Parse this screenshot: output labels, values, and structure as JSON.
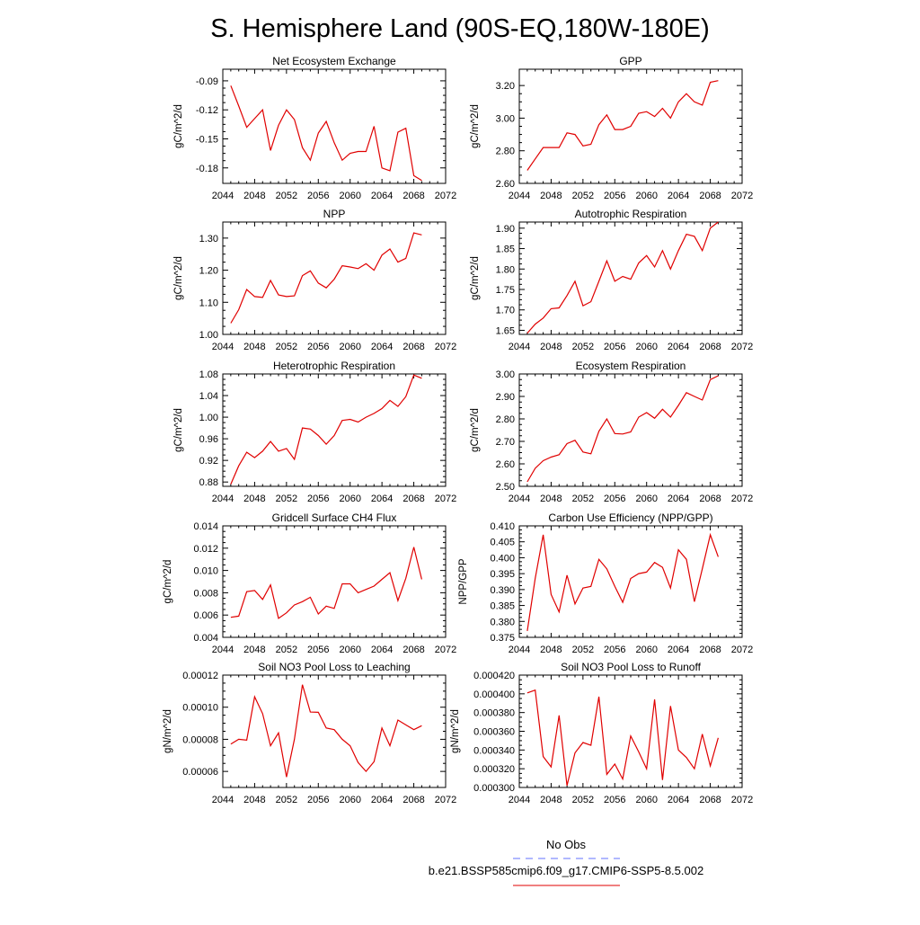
{
  "title": "S. Hemisphere Land (90S-EQ,180W-180E)",
  "legend": {
    "obs_label": "No Obs",
    "obs_color": "#6070ff",
    "model_label": "b.e21.BSSP585cmip6.f09_g17.CMIP6-SSP5-8.5.002",
    "model_color": "#e00000"
  },
  "chart_data": [
    {
      "type": "line",
      "title": "Net Ecosystem Exchange",
      "ylabel": "gC/m^2/d",
      "xlim": [
        2044,
        2072
      ],
      "xticks": [
        2044,
        2048,
        2052,
        2056,
        2060,
        2064,
        2068,
        2072
      ],
      "ylim": [
        -0.196,
        -0.078
      ],
      "yticks": [
        -0.09,
        -0.12,
        -0.15,
        -0.18
      ],
      "ytick_labels": [
        "-0.09",
        "-0.12",
        "-0.15",
        "-0.18"
      ],
      "x": [
        2045,
        2046,
        2047,
        2048,
        2049,
        2050,
        2051,
        2052,
        2053,
        2054,
        2055,
        2056,
        2057,
        2058,
        2059,
        2060,
        2061,
        2062,
        2063,
        2064,
        2065,
        2066,
        2067,
        2068,
        2069
      ],
      "y": [
        -0.095,
        -0.116,
        -0.138,
        -0.129,
        -0.12,
        -0.162,
        -0.136,
        -0.12,
        -0.13,
        -0.159,
        -0.172,
        -0.144,
        -0.132,
        -0.154,
        -0.172,
        -0.165,
        -0.163,
        -0.163,
        -0.137,
        -0.18,
        -0.183,
        -0.143,
        -0.139,
        -0.188,
        -0.193
      ]
    },
    {
      "type": "line",
      "title": "GPP",
      "ylabel": "gC/m^2/d",
      "xlim": [
        2044,
        2072
      ],
      "xticks": [
        2044,
        2048,
        2052,
        2056,
        2060,
        2064,
        2068,
        2072
      ],
      "ylim": [
        2.6,
        3.3
      ],
      "yticks": [
        2.6,
        2.8,
        3.0,
        3.2
      ],
      "ytick_labels": [
        "2.60",
        "2.80",
        "3.00",
        "3.20"
      ],
      "x": [
        2045,
        2046,
        2047,
        2048,
        2049,
        2050,
        2051,
        2052,
        2053,
        2054,
        2055,
        2056,
        2057,
        2058,
        2059,
        2060,
        2061,
        2062,
        2063,
        2064,
        2065,
        2066,
        2067,
        2068,
        2069
      ],
      "y": [
        2.68,
        2.75,
        2.82,
        2.82,
        2.82,
        2.91,
        2.9,
        2.83,
        2.84,
        2.96,
        3.02,
        2.93,
        2.93,
        2.95,
        3.03,
        3.04,
        3.01,
        3.06,
        3.0,
        3.1,
        3.15,
        3.1,
        3.08,
        3.22,
        3.23
      ]
    },
    {
      "type": "line",
      "title": "NPP",
      "ylabel": "gC/m^2/d",
      "xlim": [
        2044,
        2072
      ],
      "xticks": [
        2044,
        2048,
        2052,
        2056,
        2060,
        2064,
        2068,
        2072
      ],
      "ylim": [
        1.0,
        1.35
      ],
      "yticks": [
        1.0,
        1.1,
        1.2,
        1.3
      ],
      "ytick_labels": [
        "1.00",
        "1.10",
        "1.20",
        "1.30"
      ],
      "x": [
        2045,
        2046,
        2047,
        2048,
        2049,
        2050,
        2051,
        2052,
        2053,
        2054,
        2055,
        2056,
        2057,
        2058,
        2059,
        2060,
        2061,
        2062,
        2063,
        2064,
        2065,
        2066,
        2067,
        2068,
        2069
      ],
      "y": [
        1.035,
        1.077,
        1.14,
        1.118,
        1.115,
        1.168,
        1.123,
        1.118,
        1.12,
        1.183,
        1.198,
        1.16,
        1.145,
        1.172,
        1.214,
        1.21,
        1.205,
        1.22,
        1.2,
        1.247,
        1.266,
        1.225,
        1.237,
        1.316,
        1.31
      ]
    },
    {
      "type": "line",
      "title": "Autotrophic Respiration",
      "ylabel": "gC/m^2/d",
      "xlim": [
        2044,
        2072
      ],
      "xticks": [
        2044,
        2048,
        2052,
        2056,
        2060,
        2064,
        2068,
        2072
      ],
      "ylim": [
        1.64,
        1.915
      ],
      "yticks": [
        1.65,
        1.7,
        1.75,
        1.8,
        1.85,
        1.9
      ],
      "ytick_labels": [
        "1.65",
        "1.70",
        "1.75",
        "1.80",
        "1.85",
        "1.90"
      ],
      "x": [
        2045,
        2046,
        2047,
        2048,
        2049,
        2050,
        2051,
        2052,
        2053,
        2054,
        2055,
        2056,
        2057,
        2058,
        2059,
        2060,
        2061,
        2062,
        2063,
        2064,
        2065,
        2066,
        2067,
        2068,
        2069
      ],
      "y": [
        1.643,
        1.665,
        1.68,
        1.703,
        1.705,
        1.735,
        1.77,
        1.71,
        1.72,
        1.77,
        1.82,
        1.77,
        1.782,
        1.775,
        1.815,
        1.833,
        1.805,
        1.845,
        1.8,
        1.845,
        1.885,
        1.88,
        1.845,
        1.9,
        1.915
      ]
    },
    {
      "type": "line",
      "title": "Heterotrophic Respiration",
      "ylabel": "gC/m^2/d",
      "xlim": [
        2044,
        2072
      ],
      "xticks": [
        2044,
        2048,
        2052,
        2056,
        2060,
        2064,
        2068,
        2072
      ],
      "ylim": [
        0.872,
        1.08
      ],
      "yticks": [
        0.88,
        0.92,
        0.96,
        1.0,
        1.04,
        1.08
      ],
      "ytick_labels": [
        "0.88",
        "0.92",
        "0.96",
        "1.00",
        "1.04",
        "1.08"
      ],
      "x": [
        2045,
        2046,
        2047,
        2048,
        2049,
        2050,
        2051,
        2052,
        2053,
        2054,
        2055,
        2056,
        2057,
        2058,
        2059,
        2060,
        2061,
        2062,
        2063,
        2064,
        2065,
        2066,
        2067,
        2068,
        2069
      ],
      "y": [
        0.876,
        0.91,
        0.935,
        0.925,
        0.937,
        0.955,
        0.937,
        0.942,
        0.922,
        0.98,
        0.978,
        0.966,
        0.95,
        0.966,
        0.994,
        0.996,
        0.991,
        1.0,
        1.007,
        1.016,
        1.031,
        1.02,
        1.038,
        1.078,
        1.072
      ]
    },
    {
      "type": "line",
      "title": "Ecosystem Respiration",
      "ylabel": "gC/m^2/d",
      "xlim": [
        2044,
        2072
      ],
      "xticks": [
        2044,
        2048,
        2052,
        2056,
        2060,
        2064,
        2068,
        2072
      ],
      "ylim": [
        2.5,
        3.0
      ],
      "yticks": [
        2.5,
        2.6,
        2.7,
        2.8,
        2.9,
        3.0
      ],
      "ytick_labels": [
        "2.50",
        "2.60",
        "2.70",
        "2.80",
        "2.90",
        "3.00"
      ],
      "x": [
        2045,
        2046,
        2047,
        2048,
        2049,
        2050,
        2051,
        2052,
        2053,
        2054,
        2055,
        2056,
        2057,
        2058,
        2059,
        2060,
        2061,
        2062,
        2063,
        2064,
        2065,
        2066,
        2067,
        2068,
        2069
      ],
      "y": [
        2.52,
        2.58,
        2.614,
        2.63,
        2.641,
        2.69,
        2.705,
        2.653,
        2.645,
        2.745,
        2.8,
        2.735,
        2.733,
        2.742,
        2.808,
        2.828,
        2.803,
        2.843,
        2.808,
        2.86,
        2.917,
        2.9,
        2.884,
        2.975,
        2.992
      ]
    },
    {
      "type": "line",
      "title": "Gridcell Surface CH4 Flux",
      "ylabel": "gC/m^2/d",
      "xlim": [
        2044,
        2072
      ],
      "xticks": [
        2044,
        2048,
        2052,
        2056,
        2060,
        2064,
        2068,
        2072
      ],
      "ylim": [
        0.004,
        0.014
      ],
      "yticks": [
        0.004,
        0.006,
        0.008,
        0.01,
        0.012,
        0.014
      ],
      "ytick_labels": [
        "0.004",
        "0.006",
        "0.008",
        "0.010",
        "0.012",
        "0.014"
      ],
      "x": [
        2045,
        2046,
        2047,
        2048,
        2049,
        2050,
        2051,
        2052,
        2053,
        2054,
        2055,
        2056,
        2057,
        2058,
        2059,
        2060,
        2061,
        2062,
        2063,
        2064,
        2065,
        2066,
        2067,
        2068,
        2069
      ],
      "y": [
        0.0058,
        0.0059,
        0.0081,
        0.0082,
        0.0074,
        0.0087,
        0.0057,
        0.0062,
        0.0069,
        0.0072,
        0.0076,
        0.0061,
        0.0068,
        0.0066,
        0.0088,
        0.0088,
        0.008,
        0.0083,
        0.0086,
        0.0092,
        0.0098,
        0.0073,
        0.0093,
        0.0121,
        0.0092
      ]
    },
    {
      "type": "line",
      "title": "Carbon Use Efficiency (NPP/GPP)",
      "ylabel": "NPP/GPP",
      "xlim": [
        2044,
        2072
      ],
      "xticks": [
        2044,
        2048,
        2052,
        2056,
        2060,
        2064,
        2068,
        2072
      ],
      "ylim": [
        0.375,
        0.41
      ],
      "yticks": [
        0.375,
        0.38,
        0.385,
        0.39,
        0.395,
        0.4,
        0.405,
        0.41
      ],
      "ytick_labels": [
        "0.375",
        "0.380",
        "0.385",
        "0.390",
        "0.395",
        "0.400",
        "0.405",
        "0.410"
      ],
      "x": [
        2045,
        2046,
        2047,
        2048,
        2049,
        2050,
        2051,
        2052,
        2053,
        2054,
        2055,
        2056,
        2057,
        2058,
        2059,
        2060,
        2061,
        2062,
        2063,
        2064,
        2065,
        2066,
        2067,
        2068,
        2069
      ],
      "y": [
        0.377,
        0.3935,
        0.4072,
        0.3885,
        0.383,
        0.3945,
        0.3855,
        0.3905,
        0.391,
        0.3995,
        0.3965,
        0.391,
        0.386,
        0.3935,
        0.395,
        0.3955,
        0.3985,
        0.397,
        0.3905,
        0.4025,
        0.3995,
        0.3862,
        0.3965,
        0.4072,
        0.4003
      ]
    },
    {
      "type": "line",
      "title": "Soil NO3 Pool Loss to Leaching",
      "ylabel": "gN/m^2/d",
      "xlim": [
        2044,
        2072
      ],
      "xticks": [
        2044,
        2048,
        2052,
        2056,
        2060,
        2064,
        2068,
        2072
      ],
      "ylim": [
        5e-05,
        0.00012
      ],
      "yticks": [
        6e-05,
        8e-05,
        0.0001,
        0.00012
      ],
      "ytick_labels": [
        "0.00006",
        "0.00008",
        "0.00010",
        "0.00012"
      ],
      "x": [
        2045,
        2046,
        2047,
        2048,
        2049,
        2050,
        2051,
        2052,
        2053,
        2054,
        2055,
        2056,
        2057,
        2058,
        2059,
        2060,
        2061,
        2062,
        2063,
        2064,
        2065,
        2066,
        2067,
        2068,
        2069
      ],
      "y": [
        7.7e-05,
        8e-05,
        7.95e-05,
        0.0001065,
        9.6e-05,
        7.6e-05,
        8.4e-05,
        5.65e-05,
        8e-05,
        0.000114,
        9.7e-05,
        9.68e-05,
        8.7e-05,
        8.6e-05,
        8e-05,
        7.6e-05,
        6.55e-05,
        6e-05,
        6.6e-05,
        8.7e-05,
        7.6e-05,
        9.2e-05,
        8.9e-05,
        8.6e-05,
        8.85e-05
      ]
    },
    {
      "type": "line",
      "title": "Soil NO3 Pool Loss to Runoff",
      "ylabel": "gN/m^2/d",
      "xlim": [
        2044,
        2072
      ],
      "xticks": [
        2044,
        2048,
        2052,
        2056,
        2060,
        2064,
        2068,
        2072
      ],
      "ylim": [
        0.0003,
        0.00042
      ],
      "yticks": [
        0.0003,
        0.00032,
        0.00034,
        0.00036,
        0.00038,
        0.0004,
        0.00042
      ],
      "ytick_labels": [
        "0.000300",
        "0.000320",
        "0.000340",
        "0.000360",
        "0.000380",
        "0.000400",
        "0.000420"
      ],
      "x": [
        2045,
        2046,
        2047,
        2048,
        2049,
        2050,
        2051,
        2052,
        2053,
        2054,
        2055,
        2056,
        2057,
        2058,
        2059,
        2060,
        2061,
        2062,
        2063,
        2064,
        2065,
        2066,
        2067,
        2068,
        2069
      ],
      "y": [
        0.000401,
        0.000404,
        0.000333,
        0.000322,
        0.000377,
        0.000302,
        0.000337,
        0.000348,
        0.000345,
        0.000397,
        0.000314,
        0.000325,
        0.000309,
        0.000355,
        0.000338,
        0.00032,
        0.000394,
        0.000308,
        0.000387,
        0.00034,
        0.000332,
        0.00032,
        0.000357,
        0.000323,
        0.000353
      ]
    }
  ]
}
